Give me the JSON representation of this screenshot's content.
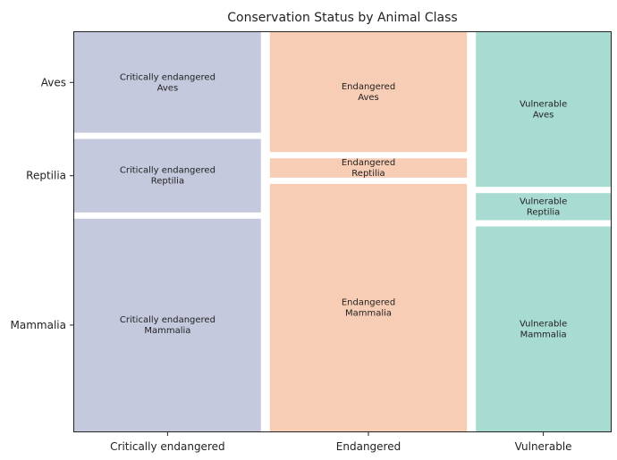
{
  "chart_data": {
    "type": "mosaic",
    "title": "Conservation Status by Animal Class",
    "xlabel": "",
    "ylabel": "",
    "categories": [
      "Critically endangered",
      "Endangered",
      "Vulnerable"
    ],
    "rows": [
      "Aves",
      "Reptilia",
      "Mammalia"
    ],
    "column_shares": [
      0.36,
      0.38,
      0.26
    ],
    "cells": [
      {
        "column": "Critically endangered",
        "row": "Aves",
        "share": 0.26,
        "label": "Critically endangered\nAves"
      },
      {
        "column": "Critically endangered",
        "row": "Reptilia",
        "share": 0.19,
        "label": "Critically endangered\nReptilia"
      },
      {
        "column": "Critically endangered",
        "row": "Mammalia",
        "share": 0.55,
        "label": "Critically endangered\nMammalia"
      },
      {
        "column": "Endangered",
        "row": "Aves",
        "share": 0.31,
        "label": "Endangered\nAves"
      },
      {
        "column": "Endangered",
        "row": "Reptilia",
        "share": 0.05,
        "label": "Endangered\nReptilia"
      },
      {
        "column": "Endangered",
        "row": "Mammalia",
        "share": 0.64,
        "label": "Endangered\nMammalia"
      },
      {
        "column": "Vulnerable",
        "row": "Aves",
        "share": 0.4,
        "label": "Vulnerable\nAves"
      },
      {
        "column": "Vulnerable",
        "row": "Reptilia",
        "share": 0.07,
        "label": "Vulnerable\nReptilia"
      },
      {
        "column": "Vulnerable",
        "row": "Mammalia",
        "share": 0.53,
        "label": "Vulnerable\nMammalia"
      }
    ],
    "colors": {
      "Critically endangered": "#c5c9de",
      "Endangered": "#f8cdb5",
      "Vulnerable": "#a8dbd2"
    },
    "grid": false,
    "legend": "none"
  }
}
